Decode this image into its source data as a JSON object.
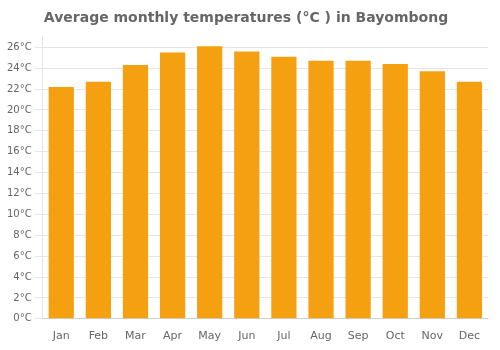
{
  "chart_data": {
    "type": "bar",
    "title": "Average monthly temperatures (°C ) in Bayombong",
    "categories": [
      "Jan",
      "Feb",
      "Mar",
      "Apr",
      "May",
      "Jun",
      "Jul",
      "Aug",
      "Sep",
      "Oct",
      "Nov",
      "Dec"
    ],
    "values": [
      22.2,
      22.7,
      24.3,
      25.5,
      26.1,
      25.6,
      25.1,
      24.7,
      24.7,
      24.4,
      23.7,
      22.7
    ],
    "color": "#F5A010",
    "ylim": [
      0,
      27
    ],
    "yticks": [
      {
        "value": 0,
        "label": "0°C"
      },
      {
        "value": 2,
        "label": "2°C"
      },
      {
        "value": 4,
        "label": "4°C"
      },
      {
        "value": 6,
        "label": "6°C"
      },
      {
        "value": 8,
        "label": "8°C"
      },
      {
        "value": 10,
        "label": "10°C"
      },
      {
        "value": 12,
        "label": "12°C"
      },
      {
        "value": 14,
        "label": "14°C"
      },
      {
        "value": 16,
        "label": "16°C"
      },
      {
        "value": 18,
        "label": "18°C"
      },
      {
        "value": 20,
        "label": "20°C"
      },
      {
        "value": 22,
        "label": "22°C"
      },
      {
        "value": 24,
        "label": "24°C"
      },
      {
        "value": 26,
        "label": "26°C"
      }
    ],
    "grid": true
  }
}
